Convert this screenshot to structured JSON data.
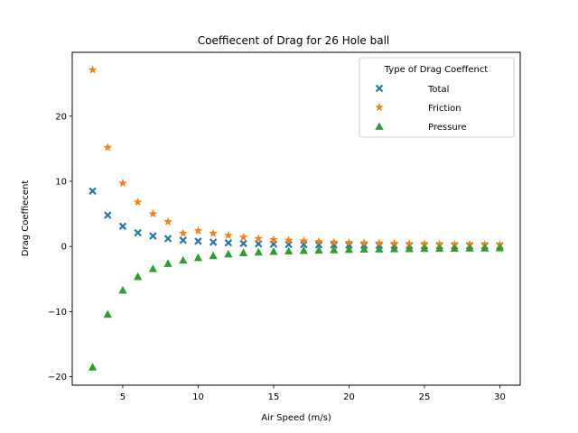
{
  "chart_data": {
    "type": "scatter",
    "title": "Coeffiecent of Drag for 26 Hole ball",
    "xlabel": "Air Speed (m/s)",
    "ylabel": "Drag Coeffiecent",
    "xlim": [
      1.65,
      31.35
    ],
    "ylim": [
      -21.3,
      29.8
    ],
    "xticks": [
      5,
      10,
      15,
      20,
      25,
      30
    ],
    "yticks": [
      -20,
      -10,
      0,
      10,
      20
    ],
    "grid": false,
    "legend": {
      "title": "Type of Drag Coeffenct",
      "placement": "top-right"
    },
    "x": [
      3,
      4,
      5,
      6,
      7,
      8,
      9,
      10,
      11,
      12,
      13,
      14,
      15,
      16,
      17,
      18,
      19,
      20,
      21,
      22,
      23,
      24,
      25,
      26,
      27,
      28,
      29,
      30
    ],
    "series": [
      {
        "name": "Total",
        "marker": "x",
        "color": "#1f77b4",
        "values": [
          8.5,
          4.8,
          3.1,
          2.1,
          1.6,
          1.2,
          0.95,
          0.8,
          0.65,
          0.55,
          0.45,
          0.4,
          0.35,
          0.3,
          0.28,
          0.25,
          0.22,
          0.2,
          0.18,
          0.17,
          0.15,
          0.14,
          0.13,
          0.12,
          0.11,
          0.1,
          0.1,
          0.09
        ]
      },
      {
        "name": "Friction",
        "marker": "star",
        "color": "#ff7f0e",
        "values": [
          27.1,
          15.2,
          9.7,
          6.8,
          5.0,
          3.8,
          2.0,
          2.4,
          2.0,
          1.7,
          1.4,
          1.2,
          1.05,
          0.95,
          0.85,
          0.75,
          0.65,
          0.6,
          0.55,
          0.5,
          0.45,
          0.42,
          0.38,
          0.35,
          0.33,
          0.31,
          0.3,
          0.28
        ]
      },
      {
        "name": "Pressure",
        "marker": "triangle",
        "color": "#2ca02c",
        "values": [
          -18.5,
          -10.4,
          -6.7,
          -4.6,
          -3.4,
          -2.6,
          -2.1,
          -1.7,
          -1.4,
          -1.15,
          -0.95,
          -0.85,
          -0.75,
          -0.7,
          -0.6,
          -0.55,
          -0.5,
          -0.45,
          -0.4,
          -0.38,
          -0.35,
          -0.33,
          -0.3,
          -0.28,
          -0.26,
          -0.24,
          -0.22,
          -0.2
        ]
      }
    ]
  }
}
